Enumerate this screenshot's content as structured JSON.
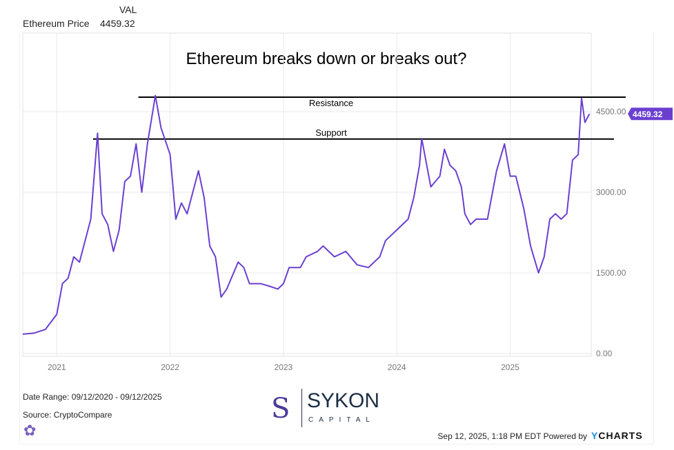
{
  "header": {
    "col_label": "VAL",
    "series_name": "Ethereum Price",
    "series_value": "4459.32"
  },
  "footer": {
    "date_range": "Date Range: 09/12/2020 - 09/12/2025",
    "source": "Source: CryptoCompare",
    "timestamp": "Sep 12, 2025, 1:18 PM EDT Powered by",
    "brand": "YCHARTS",
    "logo_main": "SYKON",
    "logo_sub": "CAPITAL"
  },
  "colors": {
    "series": "#6a3fd0",
    "annotation": "#000000",
    "grid": "#e8e8e8"
  },
  "chart_data": {
    "type": "line",
    "title": "Ethereum breaks down or breaks out?",
    "xlabel": "",
    "ylabel": "",
    "xlim": [
      2020.7,
      2025.7
    ],
    "ylim": [
      0,
      5100
    ],
    "grid": true,
    "x_ticks": [
      {
        "v": 2021,
        "label": "2021"
      },
      {
        "v": 2022,
        "label": "2022"
      },
      {
        "v": 2023,
        "label": "2023"
      },
      {
        "v": 2024,
        "label": "2024"
      },
      {
        "v": 2025,
        "label": "2025"
      }
    ],
    "y_ticks": [
      {
        "v": 0,
        "label": "0.00"
      },
      {
        "v": 1500,
        "label": "1500.00"
      },
      {
        "v": 3000,
        "label": "3000.00"
      },
      {
        "v": 4500,
        "label": "4500.00"
      }
    ],
    "last_value_label": "4459.32",
    "annotations": [
      {
        "label": "Resistance",
        "value": 4770,
        "from": 2021.72
      },
      {
        "label": "Support",
        "value": 3990,
        "from": 2021.32
      }
    ],
    "series": [
      {
        "name": "Ethereum Price",
        "x": [
          2020.7,
          2020.8,
          2020.9,
          2021.0,
          2021.05,
          2021.1,
          2021.15,
          2021.2,
          2021.25,
          2021.3,
          2021.36,
          2021.4,
          2021.45,
          2021.5,
          2021.55,
          2021.6,
          2021.65,
          2021.7,
          2021.75,
          2021.8,
          2021.87,
          2021.92,
          2022.0,
          2022.05,
          2022.1,
          2022.15,
          2022.25,
          2022.3,
          2022.35,
          2022.4,
          2022.45,
          2022.5,
          2022.6,
          2022.65,
          2022.7,
          2022.8,
          2022.88,
          2022.95,
          2023.0,
          2023.05,
          2023.15,
          2023.2,
          2023.3,
          2023.35,
          2023.45,
          2023.55,
          2023.65,
          2023.75,
          2023.85,
          2023.9,
          2024.0,
          2024.1,
          2024.15,
          2024.2,
          2024.22,
          2024.3,
          2024.38,
          2024.42,
          2024.47,
          2024.52,
          2024.57,
          2024.6,
          2024.65,
          2024.7,
          2024.8,
          2024.88,
          2024.95,
          2025.0,
          2025.05,
          2025.12,
          2025.18,
          2025.25,
          2025.3,
          2025.35,
          2025.4,
          2025.45,
          2025.5,
          2025.55,
          2025.6,
          2025.63,
          2025.66,
          2025.7
        ],
        "y": [
          360,
          380,
          450,
          730,
          1300,
          1400,
          1800,
          1700,
          2100,
          2500,
          4100,
          2600,
          2400,
          1900,
          2300,
          3200,
          3300,
          3900,
          3000,
          3900,
          4800,
          4200,
          3700,
          2500,
          2800,
          2600,
          3400,
          2900,
          2000,
          1800,
          1050,
          1200,
          1700,
          1600,
          1300,
          1300,
          1250,
          1200,
          1300,
          1600,
          1600,
          1800,
          1900,
          2000,
          1800,
          1900,
          1650,
          1600,
          1800,
          2100,
          2300,
          2500,
          2900,
          3500,
          4000,
          3100,
          3300,
          3800,
          3500,
          3400,
          3100,
          2600,
          2400,
          2500,
          2500,
          3400,
          3900,
          3300,
          3300,
          2700,
          2000,
          1500,
          1800,
          2500,
          2600,
          2500,
          2600,
          3600,
          3700,
          4750,
          4300,
          4459
        ]
      }
    ]
  }
}
